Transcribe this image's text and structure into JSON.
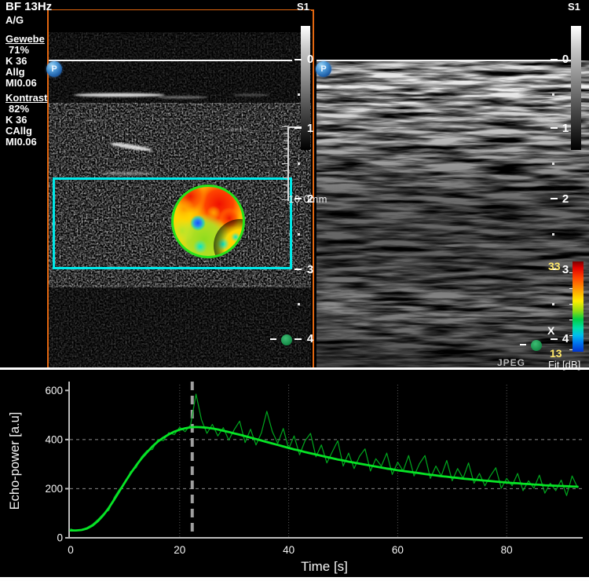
{
  "overlay": {
    "bf": "BF 13Hz",
    "ag": "A/G",
    "gewebe": {
      "title": "Gewebe",
      "percent": "71%",
      "k": "K 36",
      "mode": "Allg",
      "mi": "MI0.06"
    },
    "kontrast": {
      "title": "Kontrast",
      "percent": "82%",
      "k": "K 36",
      "mode": "CAllg",
      "mi": "MI0.06"
    }
  },
  "left_panel": {
    "label": "S1",
    "probe": "P",
    "depth_labels": [
      "0",
      "1",
      "2",
      "3",
      "4"
    ],
    "caliper_text": "10.0mm"
  },
  "right_panel": {
    "label": "S1",
    "probe": "P",
    "depth_labels": [
      "0",
      "1",
      "2",
      "3",
      "4"
    ],
    "x_marker": "X"
  },
  "colorbar": {
    "max": "33",
    "min": "13",
    "caption": "Fit [dB]"
  },
  "statusbar": {
    "format": "JPEG"
  },
  "colors": {
    "accent_orange": "#e2660f",
    "roi_cyan": "#00e8e8",
    "fit_green": "#07e426",
    "raw_green": "#00a81e"
  },
  "chart_data": {
    "type": "line",
    "title": "",
    "xlabel": "Time [s]",
    "ylabel": "Echo-power [a.u]",
    "xlim": [
      0,
      94
    ],
    "ylim": [
      0,
      600
    ],
    "xticks": [
      0,
      20,
      40,
      60,
      80
    ],
    "yticks": [
      0,
      200,
      400,
      600
    ],
    "grid_x": [
      20,
      40,
      60,
      80
    ],
    "grid_y": [
      200,
      400
    ],
    "grid_on": true,
    "legend_position": "none",
    "marker_time": 22.3,
    "marker_color": "#9f9f9f",
    "axis_color": "#bcbcbc",
    "label_color": "#f5f5f5",
    "background": "#000000",
    "series": [
      {
        "name": "raw-echo-power",
        "color": "#00a81e",
        "width": 1.2,
        "t0": 0,
        "t_step": 1,
        "values": [
          36,
          28,
          34,
          42,
          55,
          75,
          98,
          112,
          165,
          200,
          222,
          270,
          285,
          330,
          355,
          360,
          400,
          396,
          428,
          420,
          450,
          432,
          460,
          585,
          480,
          425,
          462,
          415,
          448,
          398,
          440,
          475,
          388,
          442,
          378,
          428,
          515,
          432,
          385,
          445,
          362,
          415,
          338,
          395,
          425,
          330,
          378,
          305,
          350,
          395,
          292,
          345,
          282,
          332,
          362,
          272,
          322,
          292,
          345,
          258,
          308,
          272,
          335,
          252,
          302,
          335,
          242,
          292,
          252,
          315,
          232,
          282,
          242,
          305,
          222,
          262,
          212,
          252,
          285,
          202,
          242,
          212,
          262,
          192,
          232,
          202,
          255,
          182,
          222,
          192,
          235,
          172,
          252,
          205
        ]
      },
      {
        "name": "fitted-curve",
        "color": "#07e426",
        "width": 2.8,
        "t0": 0,
        "t_step": 1,
        "values": [
          30,
          30,
          32,
          38,
          50,
          68,
          92,
          122,
          156,
          192,
          228,
          262,
          294,
          323,
          348,
          372,
          392,
          408,
          421,
          432,
          440,
          446,
          450,
          451,
          450,
          448,
          445,
          441,
          436,
          431,
          425,
          420,
          414,
          408,
          402,
          396,
          390,
          384,
          378,
          372,
          366,
          360,
          355,
          349,
          344,
          339,
          334,
          329,
          324,
          319,
          315,
          310,
          306,
          302,
          298,
          294,
          290,
          286,
          282,
          279,
          275,
          272,
          269,
          266,
          263,
          260,
          257,
          254,
          251,
          249,
          246,
          244,
          241,
          239,
          237,
          235,
          233,
          231,
          229,
          227,
          225,
          223,
          222,
          220,
          219,
          217,
          216,
          214,
          213,
          212,
          211,
          210,
          209,
          208
        ]
      }
    ]
  }
}
